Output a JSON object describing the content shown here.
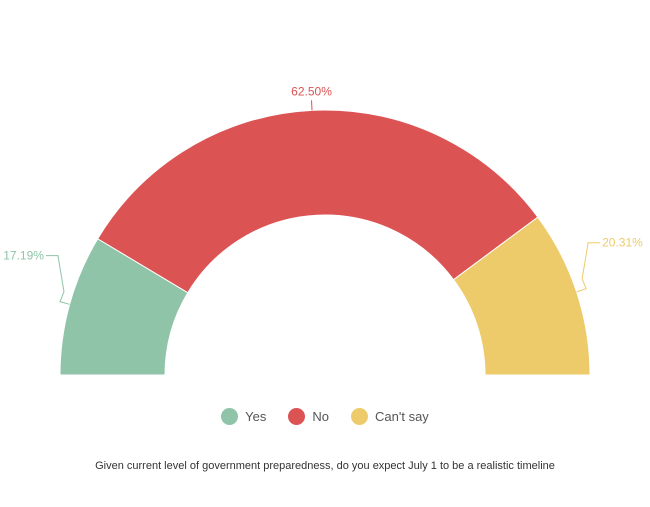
{
  "chart_data": {
    "type": "pie",
    "variant": "semi-donut",
    "title": "",
    "caption": "Given current level of government preparedness, do you expect July 1 to be a realistic timeline",
    "legend_position": "bottom-center",
    "slices": [
      {
        "name": "Yes",
        "value": 17.19,
        "label": "17.19%",
        "color": "#8fc4a8"
      },
      {
        "name": "No",
        "value": 62.5,
        "label": "62.50%",
        "color": "#dc5354"
      },
      {
        "name": "Can't say",
        "value": 20.31,
        "label": "20.31%",
        "color": "#eecb6a"
      }
    ]
  },
  "legend": {
    "items": [
      {
        "label": "Yes",
        "color": "#8fc4a8"
      },
      {
        "label": "No",
        "color": "#dc5354"
      },
      {
        "label": "Can't say",
        "color": "#eecb6a"
      }
    ]
  }
}
